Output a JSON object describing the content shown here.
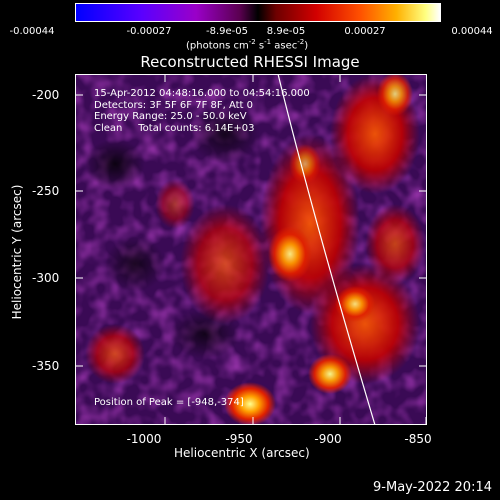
{
  "colorbar": {
    "ticks": [
      "-0.00044",
      "-0.00027",
      "-8.9e-05",
      "8.9e-05",
      "0.00027",
      "0.00044"
    ],
    "unit_prefix": "(photons cm",
    "unit_exp1": "-2",
    "unit_mid1": " s",
    "unit_exp2": "-1",
    "unit_mid2": " asec",
    "unit_exp3": "-2",
    "unit_suffix": ")"
  },
  "title": "Reconstructed RHESSI Image",
  "info": {
    "line1": "15-Apr-2012 04:48:16.000 to 04:54:16.000",
    "line2": "Detectors: 3F 5F 6F 7F 8F, Att 0",
    "line3": "Energy Range: 25.0 - 50.0 keV",
    "line4": "Clean     Total counts: 6.14E+03",
    "peak": "Position of Peak = [-948,-374]"
  },
  "axes": {
    "xlabel": "Heliocentric X (arcsec)",
    "ylabel": "Heliocentric Y (arcsec)",
    "xticks": [
      "-1000",
      "-950",
      "-900",
      "-850"
    ],
    "yticks": [
      "-200",
      "-250",
      "-300",
      "-350"
    ]
  },
  "timestamp": "9-May-2022 20:14"
}
